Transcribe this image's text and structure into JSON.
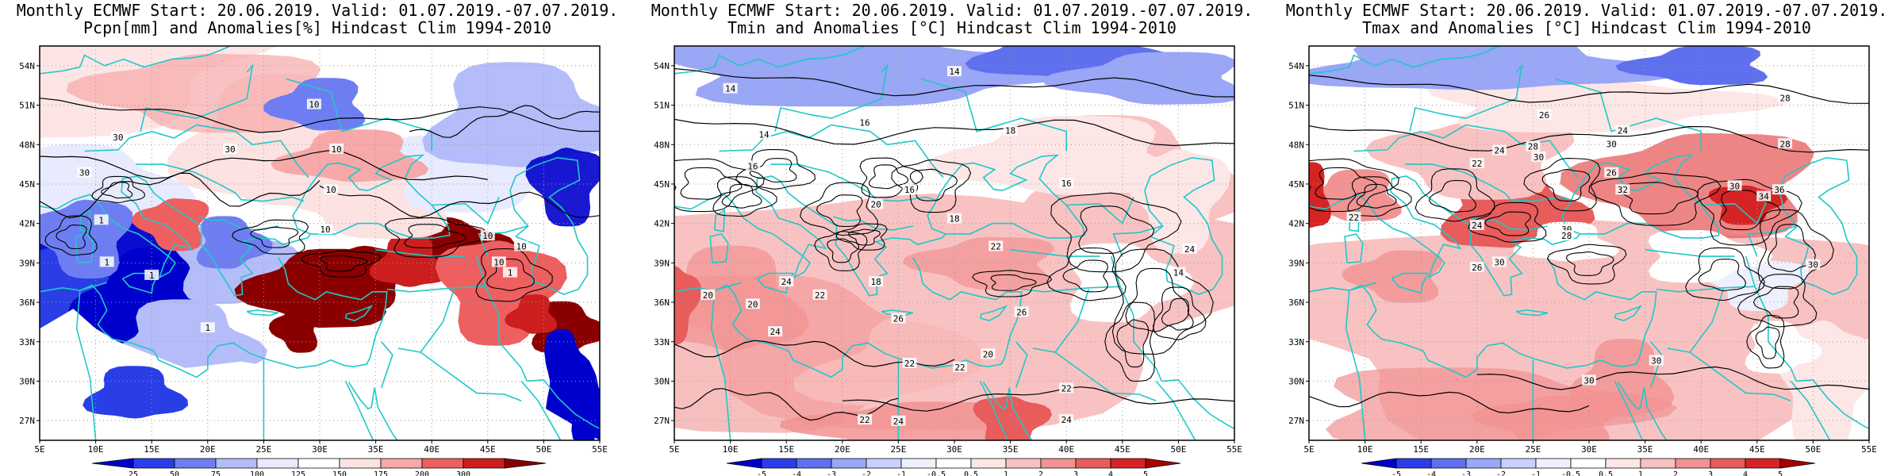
{
  "panels": [
    {
      "id": "pcpn",
      "title_line1": "Monthly ECMWF Start: 20.06.2019. Valid: 01.07.2019.-07.07.2019.",
      "title_line2": "Pcpn[mm] and Anomalies[%] Hindcast Clim 1994-2010",
      "lat_labels": [
        "54N",
        "51N",
        "48N",
        "45N",
        "42N",
        "39N",
        "36N",
        "33N",
        "30N",
        "27N"
      ],
      "lon_labels": [
        "5E",
        "10E",
        "15E",
        "20E",
        "25E",
        "30E",
        "35E",
        "40E",
        "45E",
        "50E",
        "55E"
      ],
      "contour_labels": [
        "1",
        "1",
        "1",
        "10",
        "10",
        "10",
        "10",
        "30",
        "30",
        "30",
        "1",
        "10",
        "10",
        "1",
        "10"
      ],
      "colorbar": {
        "tick_labels": [
          "25",
          "50",
          "75",
          "100",
          "125",
          "150",
          "175",
          "200",
          "300"
        ],
        "colors": [
          "#0000cc",
          "#2a3ee6",
          "#6e7ef2",
          "#b4bdf9",
          "#e8ebfd",
          "#ffffff",
          "#fde2e2",
          "#f7a8a8",
          "#ee5f5f",
          "#cc1e1e",
          "#8a0000"
        ],
        "levels": [
          25,
          50,
          75,
          100,
          125,
          150,
          175,
          200,
          300
        ]
      }
    },
    {
      "id": "tmin",
      "title_line1": "Monthly ECMWF Start: 20.06.2019. Valid: 01.07.2019.-07.07.2019.",
      "title_line2": "Tmin and Anomalies [°C] Hindcast Clim 1994-2010",
      "lat_labels": [
        "54N",
        "51N",
        "48N",
        "45N",
        "42N",
        "39N",
        "36N",
        "33N",
        "30N",
        "27N"
      ],
      "lon_labels": [
        "5E",
        "10E",
        "15E",
        "20E",
        "25E",
        "30E",
        "35E",
        "40E",
        "45E",
        "50E",
        "55E"
      ],
      "contour_labels": [
        "14",
        "14",
        "16",
        "16",
        "14",
        "18",
        "18",
        "16",
        "20",
        "22",
        "24",
        "22",
        "20",
        "24",
        "22",
        "18",
        "22",
        "26",
        "24",
        "22",
        "20",
        "22",
        "24",
        "20",
        "26",
        "24",
        "14",
        "16"
      ],
      "colorbar": {
        "tick_labels": [
          "-5",
          "-4",
          "-3",
          "-2",
          "-1",
          "-0.5",
          "0.5",
          "1",
          "2",
          "3",
          "4",
          "5"
        ],
        "colors": [
          "#0000cc",
          "#2a3ee6",
          "#5e70ee",
          "#9aa6f6",
          "#c9d0fb",
          "#eef0fe",
          "#ffffff",
          "#fde6e6",
          "#f9c2c2",
          "#f29292",
          "#e85c5c",
          "#d42424",
          "#a80000"
        ],
        "levels": [
          -5,
          -4,
          -3,
          -2,
          -1,
          -0.5,
          0.5,
          1,
          2,
          3,
          4,
          5
        ]
      }
    },
    {
      "id": "tmax",
      "title_line1": "Monthly ECMWF Start: 20.06.2019. Valid: 01.07.2019.-07.07.2019.",
      "title_line2": "Tmax and Anomalies [°C] Hindcast Clim 1994-2010",
      "lat_labels": [
        "54N",
        "51N",
        "48N",
        "45N",
        "42N",
        "39N",
        "36N",
        "33N",
        "30N",
        "27N"
      ],
      "lon_labels": [
        "5E",
        "10E",
        "15E",
        "20E",
        "25E",
        "30E",
        "35E",
        "40E",
        "45E",
        "50E",
        "55E"
      ],
      "contour_labels": [
        "22",
        "24",
        "26",
        "28",
        "30",
        "22",
        "24",
        "28",
        "30",
        "26",
        "30",
        "28",
        "32",
        "30",
        "34",
        "36",
        "30",
        "30",
        "30",
        "28",
        "26",
        "24",
        "30"
      ],
      "colorbar": {
        "tick_labels": [
          "-5",
          "-4",
          "-3",
          "-2",
          "-1",
          "-0.5",
          "0.5",
          "1",
          "2",
          "3",
          "4",
          "5"
        ],
        "colors": [
          "#0000cc",
          "#2a3ee6",
          "#5e70ee",
          "#9aa6f6",
          "#c9d0fb",
          "#eef0fe",
          "#ffffff",
          "#fde6e6",
          "#f9c2c2",
          "#f29292",
          "#e85c5c",
          "#d42424",
          "#a80000"
        ],
        "levels": [
          -5,
          -4,
          -3,
          -2,
          -1,
          -0.5,
          0.5,
          1,
          2,
          3,
          4,
          5
        ]
      }
    }
  ],
  "colors": {
    "coastline": "#1fc8c8",
    "contour": "#000000",
    "grid": "#9a9a9a",
    "frame": "#000000"
  }
}
